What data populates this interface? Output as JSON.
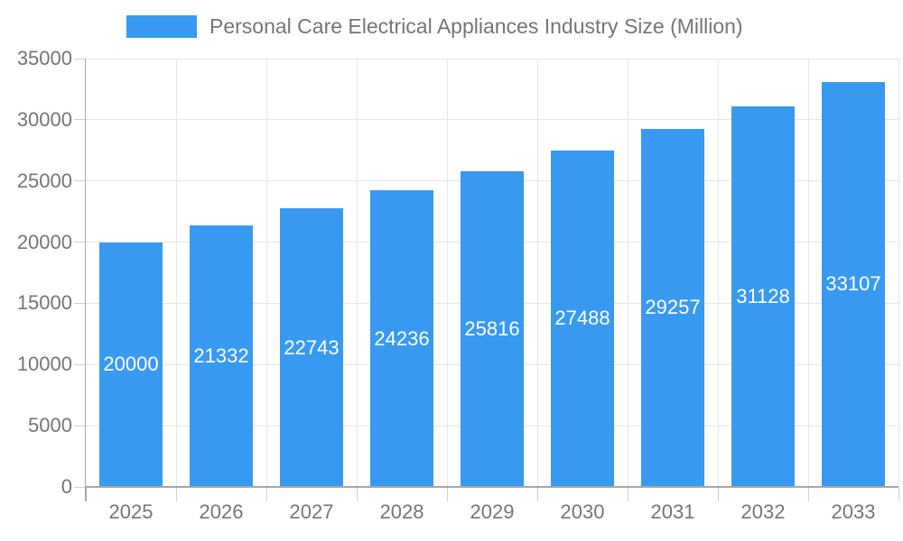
{
  "chart_data": {
    "type": "bar",
    "title": "Personal Care Electrical Appliances Industry Size (Million)",
    "xlabel": "",
    "ylabel": "",
    "categories": [
      "2025",
      "2026",
      "2027",
      "2028",
      "2029",
      "2030",
      "2031",
      "2032",
      "2033"
    ],
    "values": [
      20000,
      21332,
      22743,
      24236,
      25816,
      27488,
      29257,
      31128,
      33107
    ],
    "ylim": [
      0,
      35000
    ],
    "y_ticks": [
      0,
      5000,
      10000,
      15000,
      20000,
      25000,
      30000,
      35000
    ],
    "grid": true,
    "legend_position": "top",
    "value_labels": "inside-center",
    "colors": {
      "bar": "#3899F1",
      "value_label": "#FFFFFF",
      "axis_text": "#757575",
      "gridline": "#E6E6E6",
      "tick": "#CFCFCF",
      "axis_line": "#A6A6A6"
    }
  }
}
